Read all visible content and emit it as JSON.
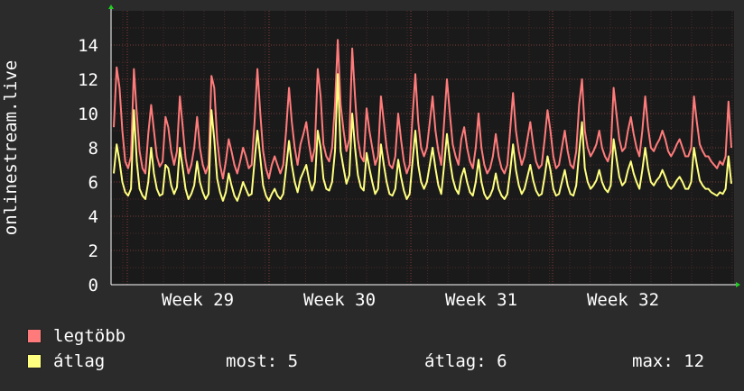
{
  "chart_data": {
    "type": "line",
    "ylabel": "onlinestream.live",
    "ylim": [
      0,
      16
    ],
    "yticks": [
      0,
      2,
      4,
      6,
      8,
      10,
      12,
      14
    ],
    "xtick_labels": [
      "Week 29",
      "Week 30",
      "Week 31",
      "Week 32"
    ],
    "grid": true,
    "legend_placement": "bottom-left",
    "series": [
      {
        "name": "legtöbb",
        "color": "#ff7b7b",
        "values": [
          9.2,
          12.7,
          11.5,
          9.0,
          7.2,
          6.8,
          7.5,
          12.6,
          10.0,
          7.8,
          6.8,
          6.5,
          8.8,
          10.5,
          9.0,
          7.5,
          6.9,
          7.2,
          9.8,
          9.2,
          7.8,
          7.0,
          7.8,
          11.0,
          9.2,
          7.4,
          6.5,
          7.0,
          8.0,
          9.8,
          8.0,
          7.0,
          6.5,
          7.0,
          12.2,
          11.5,
          8.5,
          7.0,
          6.2,
          7.2,
          8.5,
          7.8,
          7.0,
          6.5,
          7.2,
          8.0,
          7.5,
          6.8,
          7.0,
          9.5,
          12.6,
          10.0,
          7.8,
          6.8,
          6.2,
          7.0,
          7.5,
          7.0,
          6.5,
          7.0,
          9.0,
          11.5,
          9.5,
          8.0,
          7.0,
          8.2,
          8.8,
          9.5,
          8.2,
          7.2,
          8.0,
          12.6,
          11.0,
          8.2,
          7.5,
          7.2,
          8.0,
          10.5,
          14.3,
          10.5,
          9.0,
          7.8,
          8.5,
          13.8,
          11.0,
          8.5,
          7.5,
          7.2,
          10.3,
          9.0,
          8.0,
          7.0,
          7.5,
          11.0,
          9.5,
          8.0,
          7.0,
          6.8,
          7.5,
          10.0,
          8.5,
          7.2,
          6.5,
          7.0,
          9.8,
          12.3,
          9.5,
          8.0,
          7.5,
          8.0,
          9.5,
          11.0,
          9.0,
          7.8,
          7.0,
          9.5,
          12.0,
          10.0,
          8.2,
          7.5,
          7.0,
          8.5,
          9.2,
          8.0,
          7.2,
          6.8,
          8.0,
          10.0,
          8.0,
          7.0,
          6.5,
          6.8,
          7.5,
          8.8,
          7.5,
          6.8,
          6.5,
          7.0,
          9.0,
          11.2,
          9.0,
          7.8,
          7.0,
          7.5,
          8.5,
          9.5,
          8.2,
          7.2,
          6.8,
          7.0,
          8.5,
          10.2,
          9.0,
          7.5,
          6.8,
          7.0,
          8.0,
          9.0,
          7.8,
          7.0,
          6.8,
          7.8,
          10.5,
          12.0,
          9.0,
          8.0,
          7.5,
          7.8,
          8.2,
          9.0,
          8.0,
          7.5,
          7.2,
          7.8,
          11.5,
          10.0,
          8.5,
          7.8,
          8.0,
          9.0,
          9.8,
          8.8,
          8.0,
          7.5,
          9.0,
          11.0,
          9.2,
          8.0,
          7.8,
          8.2,
          8.5,
          9.0,
          8.5,
          7.8,
          7.5,
          7.8,
          8.2,
          8.5,
          8.0,
          7.5,
          7.5,
          8.0,
          11.0,
          9.5,
          8.2,
          7.8,
          7.5,
          7.5,
          7.2,
          7.0,
          6.8,
          7.2,
          7.0,
          7.5,
          10.7,
          8.0
        ]
      },
      {
        "name": "átlag",
        "color": "#ffff80",
        "values": [
          6.5,
          8.2,
          7.2,
          6.0,
          5.4,
          5.2,
          5.6,
          10.2,
          7.2,
          5.6,
          5.2,
          5.0,
          6.0,
          8.0,
          6.5,
          5.6,
          5.2,
          5.3,
          7.0,
          6.8,
          5.8,
          5.3,
          5.7,
          8.0,
          6.8,
          5.6,
          5.0,
          5.3,
          5.8,
          7.2,
          6.0,
          5.4,
          5.0,
          5.3,
          10.2,
          8.5,
          6.2,
          5.4,
          4.9,
          5.4,
          6.5,
          5.8,
          5.2,
          4.9,
          5.4,
          6.0,
          5.6,
          5.2,
          5.3,
          7.2,
          9.0,
          7.4,
          5.8,
          5.2,
          4.9,
          5.3,
          5.6,
          5.2,
          5.0,
          5.3,
          6.8,
          8.4,
          7.0,
          6.0,
          5.4,
          6.2,
          6.6,
          7.0,
          6.1,
          5.5,
          6.0,
          9.0,
          8.0,
          6.2,
          5.6,
          5.5,
          6.0,
          7.8,
          12.3,
          7.8,
          6.8,
          5.9,
          6.4,
          10.0,
          8.0,
          6.4,
          5.7,
          5.5,
          7.7,
          6.8,
          6.0,
          5.3,
          5.6,
          8.2,
          7.0,
          6.0,
          5.3,
          5.2,
          5.6,
          7.3,
          6.3,
          5.5,
          5.0,
          5.3,
          7.2,
          9.0,
          7.0,
          6.0,
          5.6,
          6.0,
          7.0,
          8.0,
          6.8,
          5.8,
          5.3,
          7.0,
          8.8,
          7.3,
          6.2,
          5.6,
          5.3,
          6.3,
          6.8,
          6.0,
          5.4,
          5.2,
          6.0,
          7.3,
          6.0,
          5.3,
          5.0,
          5.2,
          5.6,
          6.5,
          5.6,
          5.2,
          5.0,
          5.3,
          6.6,
          8.2,
          6.7,
          5.8,
          5.3,
          5.6,
          6.3,
          7.0,
          6.1,
          5.5,
          5.2,
          5.3,
          6.3,
          7.5,
          6.7,
          5.6,
          5.2,
          5.3,
          6.0,
          6.7,
          5.8,
          5.3,
          5.2,
          5.8,
          7.7,
          9.5,
          6.8,
          6.0,
          5.6,
          5.8,
          6.1,
          6.7,
          6.0,
          5.6,
          5.4,
          5.8,
          8.5,
          7.4,
          6.3,
          5.8,
          6.0,
          6.7,
          7.2,
          6.5,
          6.0,
          5.6,
          6.7,
          8.0,
          6.8,
          6.0,
          5.8,
          6.1,
          6.3,
          6.7,
          6.3,
          5.8,
          5.6,
          5.8,
          6.1,
          6.3,
          6.0,
          5.6,
          5.6,
          6.0,
          8.0,
          7.0,
          6.1,
          5.8,
          5.6,
          5.6,
          5.4,
          5.3,
          5.2,
          5.4,
          5.3,
          5.6,
          7.5,
          5.9
        ]
      }
    ]
  },
  "legend": {
    "items": [
      {
        "label": "legtöbb",
        "color": "#ff7b7b"
      },
      {
        "label": "átlag",
        "color": "#ffff80"
      }
    ]
  },
  "stats": {
    "now": "most: 5",
    "avg": "átlag: 6",
    "max": "max: 12"
  }
}
